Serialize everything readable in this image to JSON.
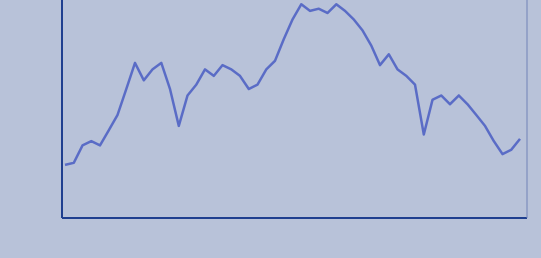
{
  "chart_data": {
    "type": "line",
    "color": "#5a6cc6",
    "ylim": [
      0,
      100
    ],
    "values": [
      24,
      25,
      33,
      35,
      33,
      40,
      47,
      59,
      71,
      63,
      68,
      71,
      59,
      42,
      56,
      61,
      68,
      65,
      70,
      68,
      65,
      59,
      61,
      68,
      72,
      82,
      91,
      98,
      95,
      96,
      94,
      98,
      95,
      91,
      86,
      79,
      70,
      75,
      68,
      65,
      61,
      38,
      54,
      56,
      52,
      56,
      52,
      47,
      42,
      35,
      29,
      31,
      36
    ]
  }
}
